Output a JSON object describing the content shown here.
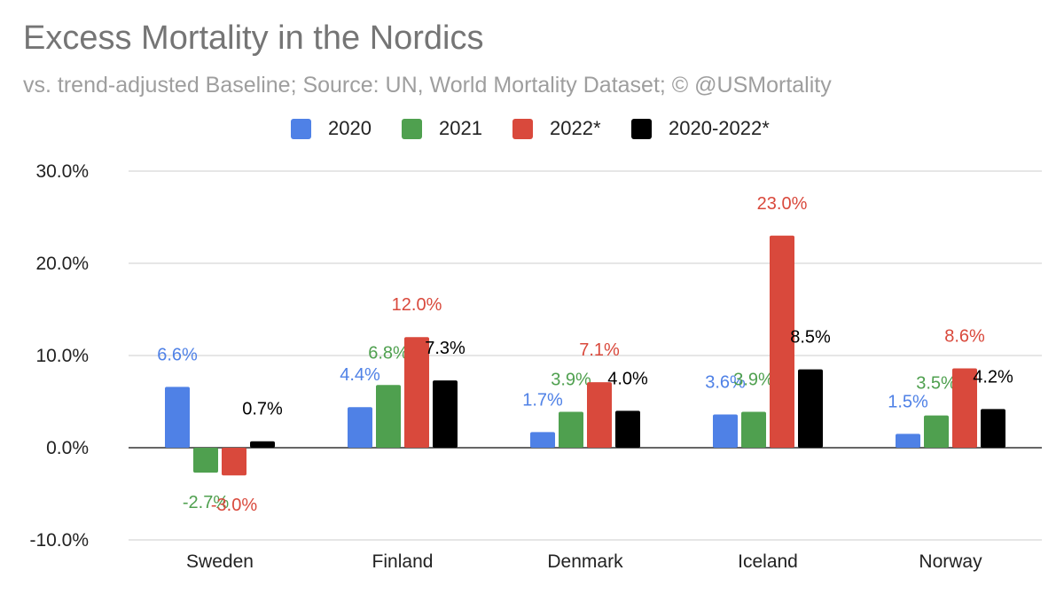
{
  "chart_data": {
    "type": "bar",
    "title": "Excess Mortality in the Nordics",
    "subtitle": "vs. trend-adjusted Baseline; Source: UN, World Mortality Dataset; © @USMortality",
    "categories": [
      "Sweden",
      "Finland",
      "Denmark",
      "Iceland",
      "Norway"
    ],
    "series": [
      {
        "name": "2020",
        "color": "#4f81e6",
        "values": [
          6.6,
          4.4,
          1.7,
          3.6,
          1.5
        ],
        "labels": [
          "6.6%",
          "4.4%",
          "1.7%",
          "3.6%",
          "1.5%"
        ]
      },
      {
        "name": "2021",
        "color": "#4fa04f",
        "values": [
          -2.7,
          6.8,
          3.9,
          3.9,
          3.5
        ],
        "labels": [
          "-2.7%",
          "6.8%",
          "3.9%",
          "3.9%",
          "3.5%"
        ]
      },
      {
        "name": "2022*",
        "color": "#d9493c",
        "values": [
          -3.0,
          12.0,
          7.1,
          23.0,
          8.6
        ],
        "labels": [
          "-3.0%",
          "12.0%",
          "7.1%",
          "23.0%",
          "8.6%"
        ]
      },
      {
        "name": "2020-2022*",
        "color": "#000000",
        "values": [
          0.7,
          7.3,
          4.0,
          8.5,
          4.2
        ],
        "labels": [
          "0.7%",
          "7.3%",
          "4.0%",
          "8.5%",
          "4.2%"
        ]
      }
    ],
    "yticks": [
      "30.0%",
      "20.0%",
      "10.0%",
      "0.0%",
      "-10.0%"
    ],
    "ylim": [
      -10,
      30
    ],
    "grid": true,
    "legend_position": "top"
  }
}
